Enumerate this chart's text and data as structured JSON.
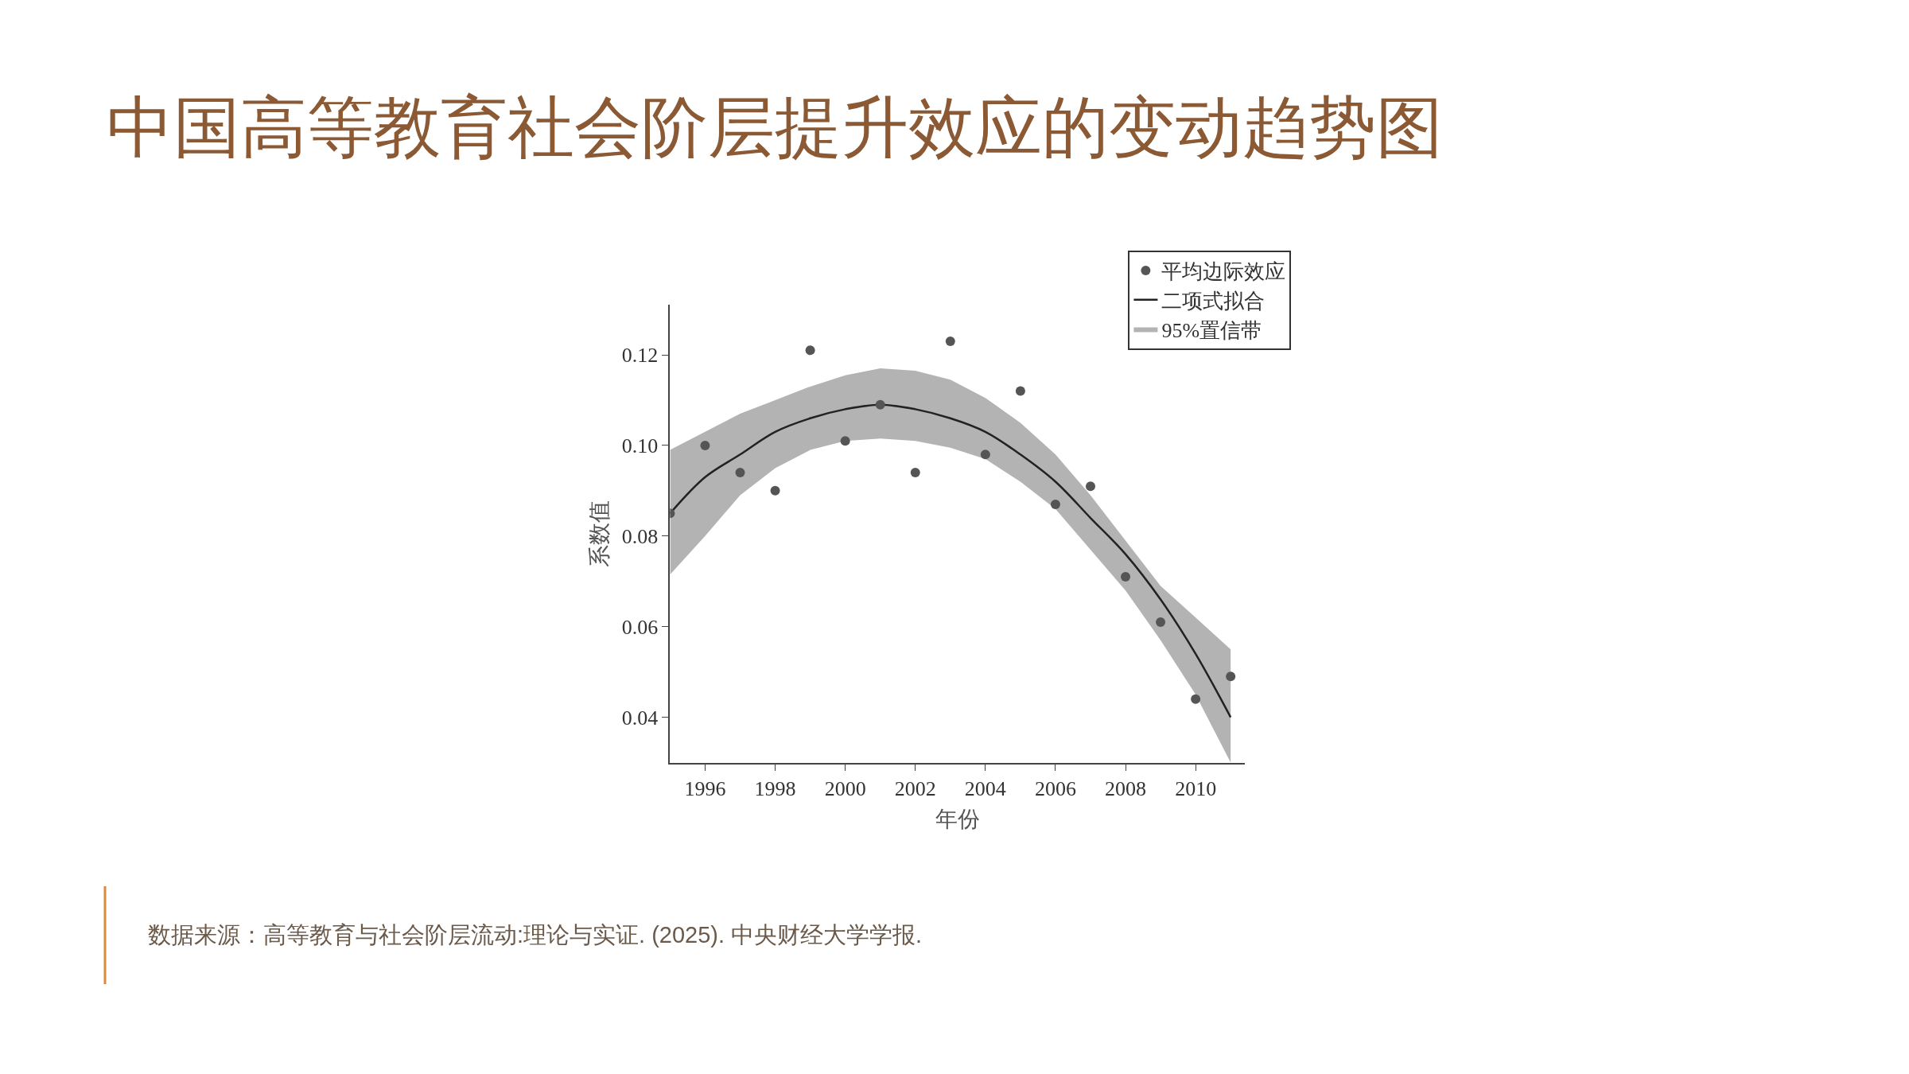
{
  "chart_data": {
    "type": "scatter",
    "title": "中国高等教育社会阶层提升效应的变动趋势图",
    "xlabel": "年份",
    "ylabel": "系数值",
    "xlim": [
      1995,
      2011.4
    ],
    "xticks": [
      1996,
      1998,
      2000,
      2002,
      2004,
      2006,
      2008,
      2010
    ],
    "ylim": [
      0.03,
      0.131
    ],
    "yticks": [
      0.04,
      0.06,
      0.08,
      {
        "value": 0.1,
        "label": "0.10"
      },
      0.12
    ],
    "legend": "top right",
    "marker": "circle",
    "series": [
      {
        "name": "平均边际效应",
        "color": "#555555",
        "x": [
          1995,
          1996,
          1997,
          1998,
          1999,
          2000,
          2001,
          2002,
          2003,
          2004,
          2005,
          2006,
          2007,
          2008,
          2009,
          2010,
          2011
        ],
        "values": [
          0.085,
          0.1,
          0.094,
          0.09,
          0.121,
          0.101,
          0.109,
          0.094,
          0.123,
          0.098,
          0.112,
          0.087,
          0.091,
          0.071,
          0.061,
          0.044,
          0.049
        ]
      },
      {
        "name": "二项式拟合",
        "type": "line",
        "color": "#222222",
        "marker": "none",
        "line_style": "solid",
        "x": [
          1995,
          1996,
          1997,
          1998,
          1999,
          2000,
          2001,
          2002,
          2003,
          2004,
          2005,
          2006,
          2007,
          2008,
          2009,
          2010,
          2011
        ],
        "values": [
          0.085,
          0.093,
          0.098,
          0.103,
          0.106,
          0.108,
          0.109,
          0.108,
          0.106,
          0.103,
          0.098,
          0.092,
          0.084,
          0.076,
          0.066,
          0.054,
          0.04
        ],
        "lower": [
          0.0715,
          0.08,
          0.089,
          0.095,
          0.099,
          0.101,
          0.1015,
          0.101,
          0.0995,
          0.097,
          0.092,
          0.086,
          0.077,
          0.068,
          0.057,
          0.045,
          0.03
        ],
        "upper": [
          0.099,
          0.103,
          0.107,
          0.11,
          0.113,
          0.1155,
          0.117,
          0.1165,
          0.1145,
          0.1105,
          0.105,
          0.098,
          0.089,
          0.079,
          0.069,
          0.062,
          0.055
        ]
      },
      {
        "name": "95%置信带",
        "type": "other",
        "color": "#b3b3b3"
      }
    ],
    "annotations": [
      "数据来源：高等教育与社会阶层流动:理论与实证. (2025). 中央财经大学学报."
    ]
  }
}
